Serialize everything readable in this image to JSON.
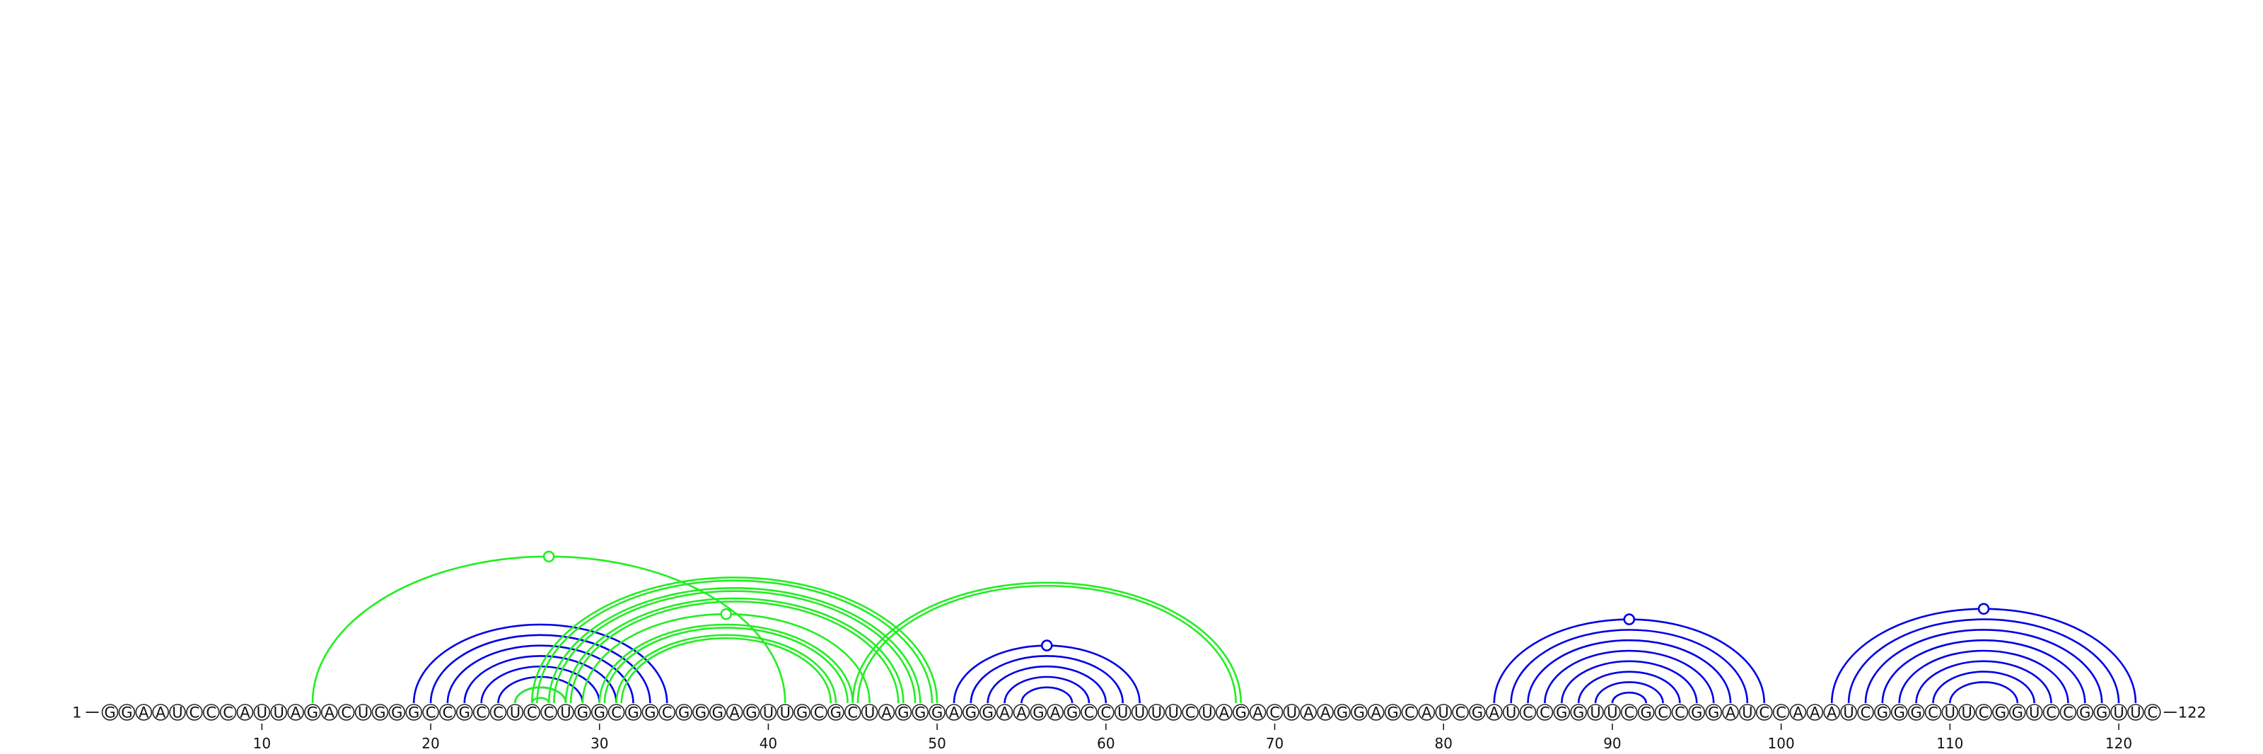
{
  "sequence": "GGAAUCCCAUUAGACUGGGCCGCCUCCUGGCGGCGGGAGUUGCGCUAGGGAGGAAGAGCCUUUUCUAGACUAAGGAGCAUCGAUCCGGUUCGCCGGAUCCAAAUCGGGCUUCGGUCCGGUUC",
  "start_label": "1",
  "end_label": "122",
  "ticks": [
    10,
    20,
    30,
    40,
    50,
    60,
    70,
    80,
    90,
    100,
    110,
    120
  ],
  "colors": {
    "blue": "#0000e6",
    "green": "#22ee22"
  },
  "arc_sets": [
    {
      "color": "blue",
      "arcs": [
        [
          19,
          34
        ],
        [
          20,
          33
        ],
        [
          21,
          32
        ],
        [
          22,
          31
        ],
        [
          23,
          30
        ],
        [
          24,
          29
        ],
        [
          25,
          28
        ]
      ],
      "marker": false
    },
    {
      "color": "blue",
      "arcs": [
        [
          51,
          62
        ],
        [
          52,
          61
        ],
        [
          53,
          60
        ],
        [
          54,
          59
        ],
        [
          55,
          58
        ]
      ],
      "marker": true
    },
    {
      "color": "blue",
      "arcs": [
        [
          83,
          99
        ],
        [
          84,
          98
        ],
        [
          85,
          97
        ],
        [
          86,
          96
        ],
        [
          87,
          95
        ],
        [
          88,
          94
        ],
        [
          89,
          93
        ],
        [
          90,
          92
        ]
      ],
      "marker": true
    },
    {
      "color": "blue",
      "arcs": [
        [
          103,
          121
        ],
        [
          104,
          120
        ],
        [
          105,
          119
        ],
        [
          106,
          118
        ],
        [
          107,
          117
        ],
        [
          108,
          116
        ],
        [
          109,
          115
        ],
        [
          110,
          114
        ]
      ],
      "marker": true
    },
    {
      "color": "green",
      "arcs": [
        [
          13,
          41
        ]
      ],
      "marker": true
    },
    {
      "color": "green",
      "arcs": [
        [
          26,
          50
        ],
        [
          26.3,
          49.7
        ],
        [
          27,
          49
        ],
        [
          27.3,
          48.7
        ],
        [
          28,
          48
        ],
        [
          28.3,
          47.7
        ]
      ],
      "marker": false
    },
    {
      "color": "green",
      "arcs": [
        [
          29,
          46
        ],
        [
          30,
          45
        ],
        [
          30.3,
          44.7
        ],
        [
          31,
          44
        ],
        [
          31.3,
          43.7
        ]
      ],
      "marker": true
    },
    {
      "color": "green",
      "arcs": [
        [
          25,
          28
        ],
        [
          26,
          27
        ]
      ],
      "marker": false
    },
    {
      "color": "green",
      "arcs": [
        [
          45,
          68
        ],
        [
          45.3,
          67.7
        ]
      ],
      "marker": false
    }
  ]
}
